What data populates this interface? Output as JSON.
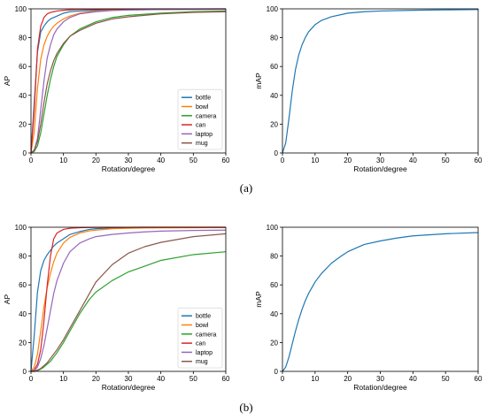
{
  "subfigure_labels": [
    "(a)",
    "(b)"
  ],
  "colors": {
    "bottle": "#1f77b4",
    "bowl": "#ff7f0e",
    "camera": "#2ca02c",
    "can": "#d62728",
    "laptop": "#9467bd",
    "mug": "#8c564b",
    "map": "#1f77b4"
  },
  "chart_data": [
    {
      "type": "line",
      "panel": "a-left",
      "xlabel": "Rotation/degree",
      "ylabel": "AP",
      "xlim": [
        0,
        60
      ],
      "ylim": [
        0,
        100
      ],
      "xticks": [
        0,
        10,
        20,
        30,
        40,
        50,
        60
      ],
      "yticks": [
        0,
        20,
        40,
        60,
        80,
        100
      ],
      "legend": "lower-right",
      "x": [
        0,
        1,
        2,
        3,
        4,
        5,
        6,
        7,
        8,
        10,
        12,
        15,
        20,
        25,
        30,
        40,
        50,
        60
      ],
      "series": [
        {
          "name": "bottle",
          "values": [
            0,
            35,
            70,
            84,
            88,
            91,
            93,
            94,
            95,
            97,
            98,
            98.5,
            99,
            99.3,
            99.5,
            99.7,
            99.8,
            99.9
          ]
        },
        {
          "name": "bowl",
          "values": [
            0,
            15,
            45,
            65,
            75,
            81,
            85,
            88,
            90,
            93,
            95,
            97,
            98.5,
            99,
            99.2,
            99.5,
            99.6,
            99.7
          ]
        },
        {
          "name": "camera",
          "values": [
            0,
            1,
            5,
            14,
            27,
            40,
            51,
            60,
            67,
            75,
            81,
            86,
            91,
            94,
            95.5,
            97,
            98,
            98.5
          ]
        },
        {
          "name": "can",
          "values": [
            0,
            30,
            72,
            88,
            94,
            96.5,
            97.5,
            98,
            98.5,
            99,
            99.3,
            99.5,
            99.7,
            99.8,
            99.8,
            99.9,
            99.9,
            100
          ]
        },
        {
          "name": "laptop",
          "values": [
            0,
            2,
            10,
            30,
            50,
            66,
            75,
            82,
            86,
            91,
            94,
            96.5,
            98,
            98.8,
            99.2,
            99.5,
            99.6,
            99.7
          ]
        },
        {
          "name": "mug",
          "values": [
            0,
            2,
            8,
            20,
            35,
            48,
            57,
            64,
            69,
            76,
            81,
            85,
            90,
            93,
            94.5,
            96.5,
            97.5,
            98
          ]
        }
      ]
    },
    {
      "type": "line",
      "panel": "a-right",
      "xlabel": "Rotation/degree",
      "ylabel": "mAP",
      "xlim": [
        0,
        60
      ],
      "ylim": [
        0,
        100
      ],
      "xticks": [
        0,
        10,
        20,
        30,
        40,
        50,
        60
      ],
      "yticks": [
        0,
        20,
        40,
        60,
        80,
        100
      ],
      "x": [
        0,
        1,
        2,
        3,
        4,
        5,
        6,
        7,
        8,
        10,
        12,
        15,
        20,
        25,
        30,
        40,
        50,
        60
      ],
      "series": [
        {
          "values": [
            0,
            7,
            24,
            43,
            58,
            68,
            75,
            80,
            84,
            89,
            92,
            94.5,
            97,
            98,
            98.5,
            99,
            99.3,
            99.5
          ]
        }
      ]
    },
    {
      "type": "line",
      "panel": "b-left",
      "xlabel": "Rotation/degree",
      "ylabel": "AP",
      "xlim": [
        0,
        60
      ],
      "ylim": [
        0,
        100
      ],
      "xticks": [
        0,
        10,
        20,
        30,
        40,
        50,
        60
      ],
      "yticks": [
        0,
        20,
        40,
        60,
        80,
        100
      ],
      "legend": "lower-right",
      "x": [
        0,
        1,
        2,
        3,
        4,
        5,
        6,
        7,
        8,
        10,
        12,
        15,
        18,
        20,
        25,
        30,
        35,
        40,
        50,
        60
      ],
      "series": [
        {
          "name": "bottle",
          "values": [
            0,
            25,
            55,
            70,
            77,
            81,
            84,
            87,
            89,
            92,
            95,
            97,
            98.5,
            99,
            99.5,
            99.7,
            99.8,
            99.9,
            99.9,
            99.9
          ]
        },
        {
          "name": "bowl",
          "values": [
            0,
            3,
            12,
            28,
            45,
            58,
            68,
            76,
            82,
            89,
            93,
            96,
            97.5,
            98,
            99,
            99.3,
            99.5,
            99.6,
            99.7,
            99.8
          ]
        },
        {
          "name": "camera",
          "values": [
            0,
            0,
            0.5,
            1.5,
            3,
            5,
            7,
            10,
            13,
            20,
            28,
            40,
            50,
            55,
            63,
            69,
            73,
            77,
            81,
            83
          ]
        },
        {
          "name": "can",
          "values": [
            0,
            1,
            5,
            15,
            35,
            60,
            80,
            92,
            96,
            98.5,
            99.3,
            99.7,
            99.8,
            99.9,
            99.9,
            99.9,
            100,
            100,
            100,
            100
          ]
        },
        {
          "name": "laptop",
          "values": [
            0,
            0.5,
            3,
            9,
            18,
            30,
            42,
            54,
            63,
            75,
            83,
            89,
            92,
            93.5,
            95,
            96,
            96.8,
            97.3,
            97.8,
            98
          ]
        },
        {
          "name": "mug",
          "values": [
            0,
            0,
            1,
            2,
            4,
            6,
            9,
            12,
            15,
            22,
            30,
            42,
            54,
            62,
            74,
            82,
            86.5,
            89.5,
            93.5,
            95.5
          ]
        }
      ]
    },
    {
      "type": "line",
      "panel": "b-right",
      "xlabel": "Rotation/degree",
      "ylabel": "mAP",
      "xlim": [
        0,
        60
      ],
      "ylim": [
        0,
        100
      ],
      "xticks": [
        0,
        10,
        20,
        30,
        40,
        50,
        60
      ],
      "yticks": [
        0,
        20,
        40,
        60,
        80,
        100
      ],
      "x": [
        0,
        1,
        2,
        3,
        4,
        5,
        6,
        7,
        8,
        10,
        12,
        15,
        18,
        20,
        25,
        30,
        35,
        40,
        50,
        60
      ],
      "series": [
        {
          "values": [
            0,
            3,
            10,
            19,
            28,
            36,
            43,
            49,
            54,
            62,
            68,
            75,
            80,
            83,
            88,
            90.5,
            92.5,
            94,
            95.5,
            96.3
          ]
        }
      ]
    }
  ]
}
